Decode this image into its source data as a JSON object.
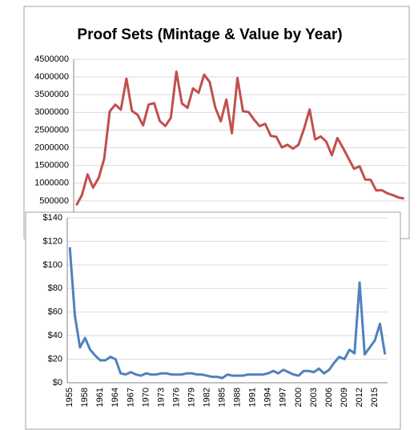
{
  "chart_data": [
    {
      "type": "line",
      "title": "Proof Sets (Mintage & Value by Year)",
      "color": "#c0504d",
      "grid": true,
      "ylim": [
        0,
        4500000
      ],
      "yticks": [
        500000,
        1000000,
        1500000,
        2000000,
        2500000,
        3000000,
        3500000,
        4000000,
        4500000
      ],
      "values": [
        378200,
        669384,
        1247952,
        875652,
        1149291,
        1691602,
        3028244,
        3218019,
        3075645,
        3950762,
        3041506,
        2934631,
        2632810,
        3220733,
        3260996,
        2760339,
        2612568,
        2845450,
        4149730,
        3251152,
        3127781,
        3677175,
        3554806,
        4063083,
        3857479,
        3138765,
        2748430,
        3362821,
        2411180,
        3972233,
        3031287,
        3009107,
        2793433,
        2610833,
        2675618,
        2337819,
        2308701,
        2010384,
        2085191,
        1975000,
        2086507,
        2543401,
        3082572,
        2235000,
        2319766,
        2172684,
        1789488,
        2275000,
        2000428,
        1702116,
        1405674,
        1477967,
        1103815,
        1095318,
        794002,
        802460,
        714661,
        662943,
        595184,
        568678
      ]
    },
    {
      "type": "line",
      "color": "#4f81bd",
      "grid": true,
      "ylim": [
        0,
        140
      ],
      "yticks": [
        {
          "value": 0,
          "label": "$0"
        },
        {
          "value": 20,
          "label": "$20"
        },
        {
          "value": 40,
          "label": "$40"
        },
        {
          "value": 60,
          "label": "$60"
        },
        {
          "value": 80,
          "label": "$80"
        },
        {
          "value": 100,
          "label": "$100"
        },
        {
          "value": 120,
          "label": "$120"
        },
        {
          "value": 140,
          "label": "$140"
        }
      ],
      "categories": [
        "1955",
        null,
        null,
        "1958",
        null,
        null,
        "1961",
        null,
        null,
        "1964",
        null,
        null,
        "1967",
        null,
        null,
        "1970",
        null,
        null,
        "1973",
        null,
        null,
        "1976",
        null,
        null,
        "1979",
        null,
        null,
        "1982",
        null,
        null,
        "1985",
        null,
        null,
        "1988",
        null,
        null,
        "1991",
        null,
        null,
        "1994",
        null,
        null,
        "1997",
        null,
        null,
        "2000",
        null,
        null,
        "2003",
        null,
        null,
        "2006",
        null,
        null,
        "2009",
        null,
        null,
        "2012",
        null,
        null,
        "2015",
        null,
        null
      ],
      "values": [
        115,
        57,
        30,
        38,
        28,
        23,
        19,
        19,
        22,
        20,
        8,
        7,
        9,
        7,
        6,
        8,
        7,
        7,
        8,
        8,
        7,
        7,
        7,
        8,
        8,
        7,
        7,
        6,
        5,
        5,
        4,
        7,
        6,
        6,
        6,
        7,
        7,
        7,
        7,
        8,
        10,
        8,
        11,
        9,
        7,
        6,
        10,
        10,
        9,
        12,
        8,
        11,
        17,
        22,
        20,
        28,
        25,
        85,
        24,
        30,
        36,
        50,
        24
      ]
    }
  ]
}
